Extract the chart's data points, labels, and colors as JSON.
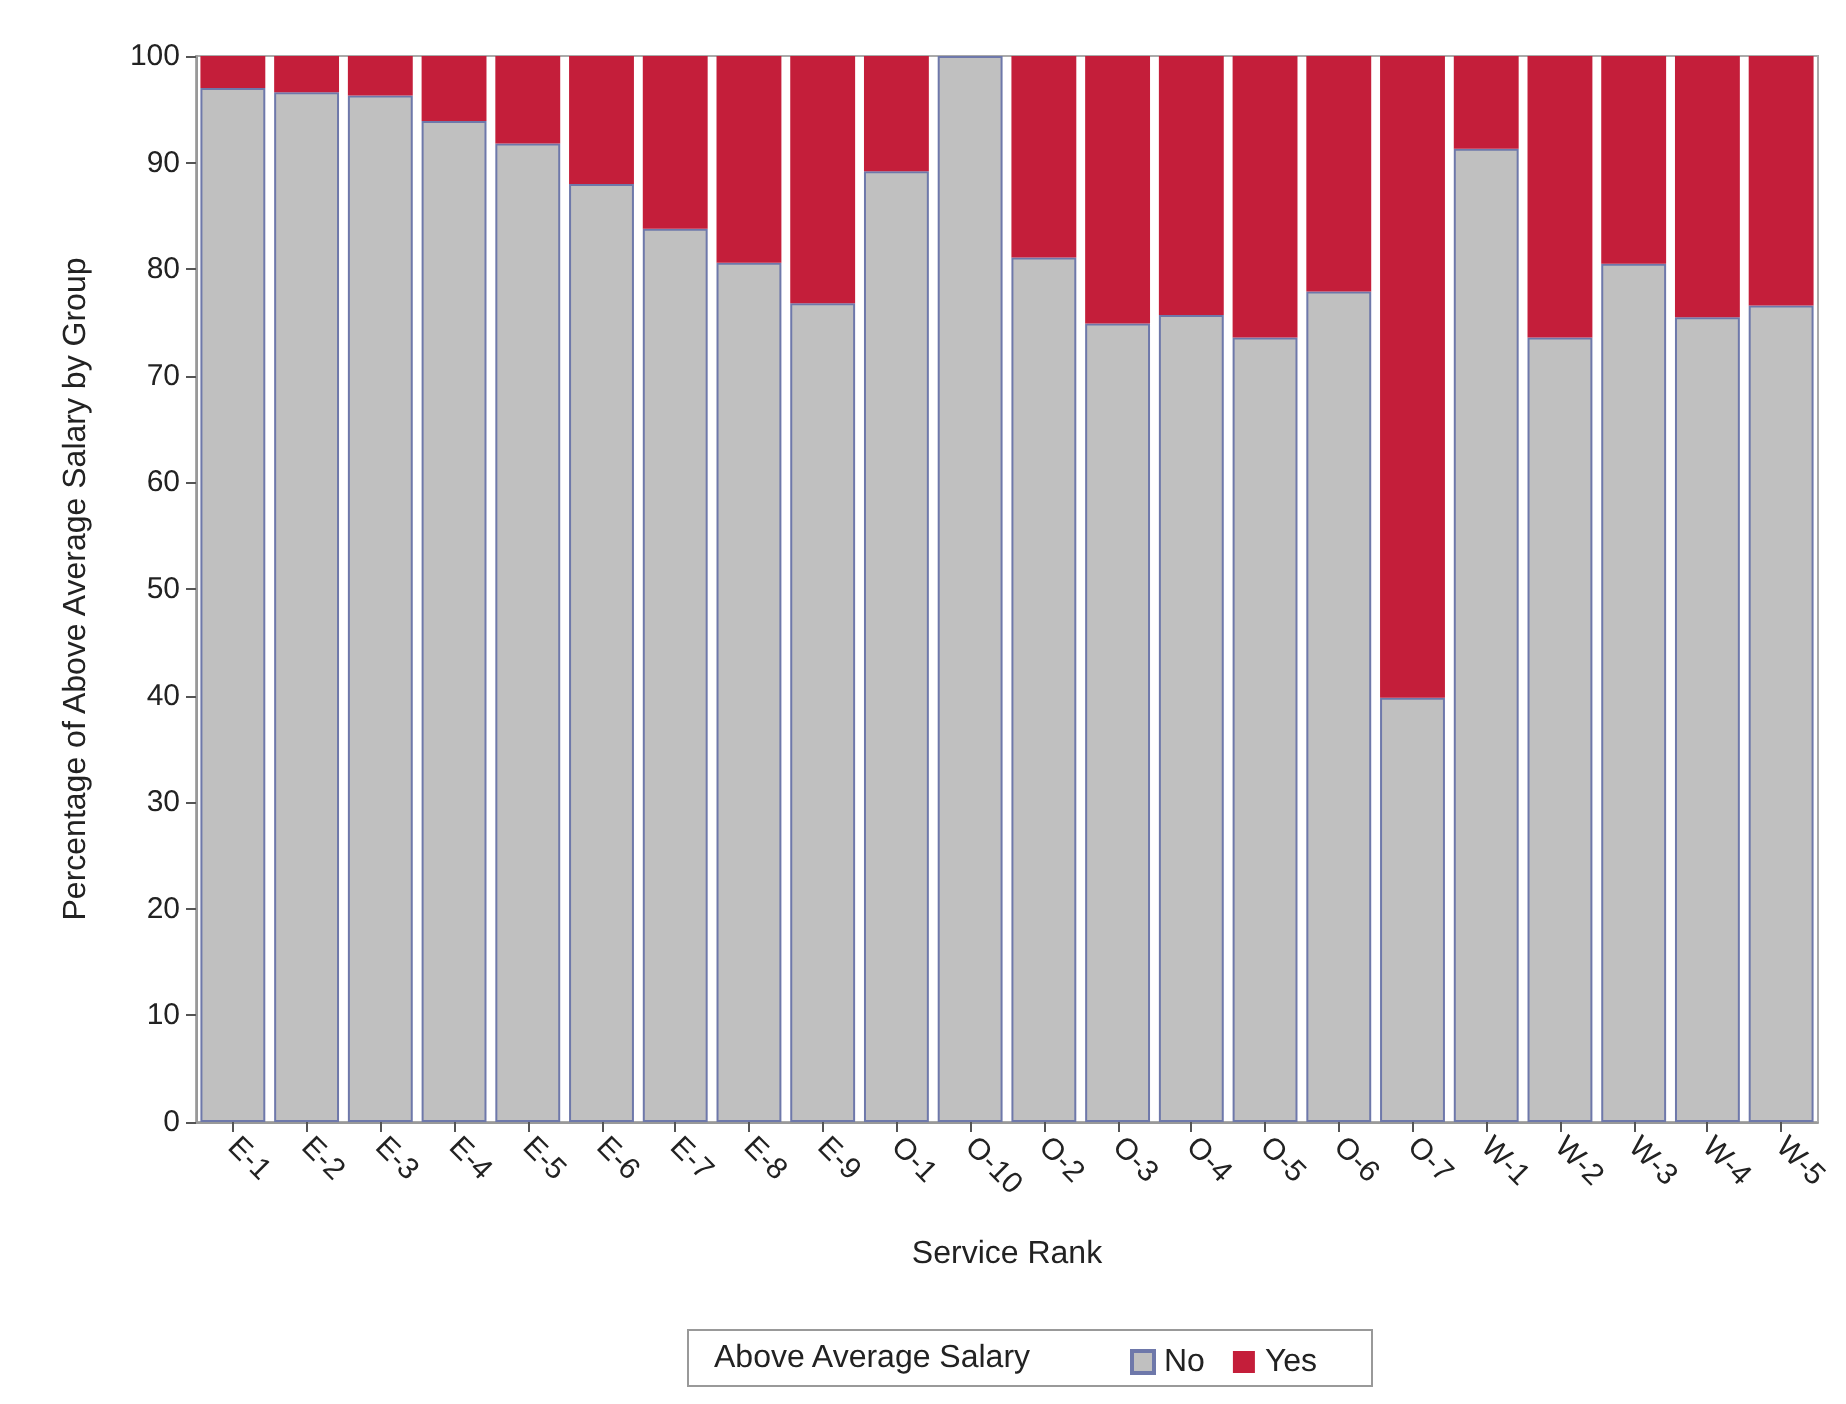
{
  "chart_data": {
    "type": "bar",
    "xlabel": "Service Rank",
    "ylabel": "Percentage of Above Average Salary by Group",
    "legend_title": "Above Average Salary",
    "categories": [
      "E-1",
      "E-2",
      "E-3",
      "E-4",
      "E-5",
      "E-6",
      "E-7",
      "E-8",
      "E-9",
      "O-1",
      "O-10",
      "O-2",
      "O-3",
      "O-4",
      "O-5",
      "O-6",
      "O-7",
      "W-1",
      "W-2",
      "W-3",
      "W-4",
      "W-5"
    ],
    "series": [
      {
        "name": "No",
        "color": "#c0c0c0",
        "values": [
          97.0,
          96.6,
          96.3,
          93.9,
          91.8,
          88.0,
          83.8,
          80.6,
          76.8,
          89.2,
          100,
          81.1,
          74.9,
          75.7,
          73.6,
          77.9,
          39.8,
          91.3,
          73.6,
          80.5,
          75.5,
          76.6
        ]
      },
      {
        "name": "Yes",
        "color": "#c41e3a",
        "values": [
          3.0,
          3.4,
          3.7,
          6.1,
          8.2,
          12.0,
          16.2,
          19.4,
          23.2,
          10.8,
          0,
          18.9,
          25.1,
          24.3,
          26.4,
          22.1,
          60.2,
          8.7,
          26.4,
          19.5,
          24.5,
          23.4
        ]
      }
    ],
    "stacked": true,
    "ylim": [
      0,
      100
    ],
    "yticks": [
      0,
      10,
      20,
      30,
      40,
      50,
      60,
      70,
      80,
      90,
      100
    ],
    "grid": false,
    "legend": "bottom"
  }
}
